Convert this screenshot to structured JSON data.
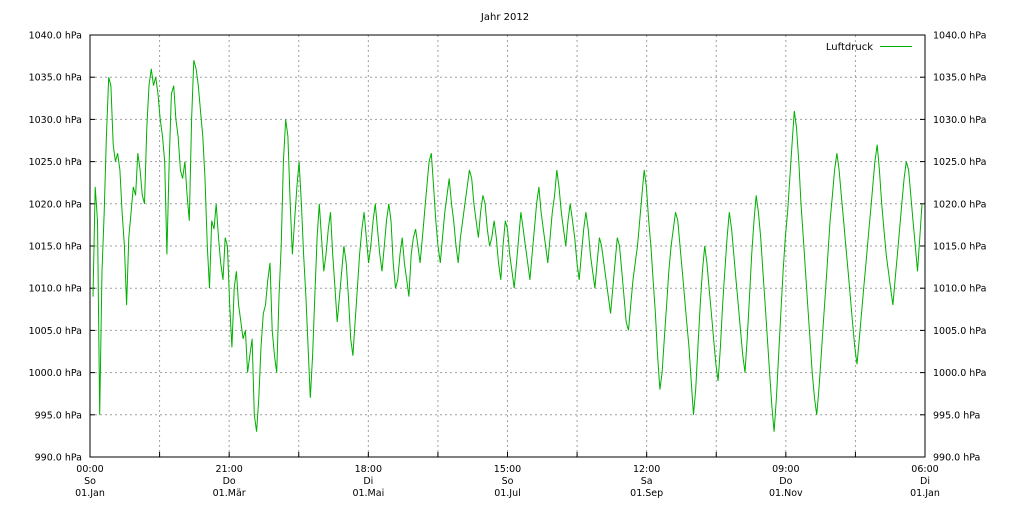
{
  "chart_data": {
    "type": "line",
    "title": "Jahr 2012",
    "xlabel": "",
    "ylabel": "",
    "ylim": [
      990,
      1040
    ],
    "y_ticks": [
      990,
      995,
      1000,
      1005,
      1010,
      1015,
      1020,
      1025,
      1030,
      1035,
      1040
    ],
    "y_tick_labels": [
      "990.0 hPa",
      "995.0 hPa",
      "1000.0 hPa",
      "1005.0 hPa",
      "1010.0 hPa",
      "1015.0 hPa",
      "1020.0 hPa",
      "1025.0 hPa",
      "1030.0 hPa",
      "1035.0 hPa",
      "1040.0 hPa"
    ],
    "x_ticks": [
      {
        "time": "00:00",
        "day": "So",
        "date": "01.Jan"
      },
      {
        "time": "21:00",
        "day": "Do",
        "date": "01.Mär"
      },
      {
        "time": "18:00",
        "day": "Di",
        "date": "01.Mai"
      },
      {
        "time": "15:00",
        "day": "So",
        "date": "01.Jul"
      },
      {
        "time": "12:00",
        "day": "Sa",
        "date": "01.Sep"
      },
      {
        "time": "09:00",
        "day": "Do",
        "date": "01.Nov"
      },
      {
        "time": "06:00",
        "day": "Di",
        "date": "01.Jan"
      }
    ],
    "grid": true,
    "legend_position": "top-right",
    "series": [
      {
        "name": "Luftdruck",
        "color": "#00b000",
        "x_start": "2012-01-01",
        "x_end": "2013-01-01",
        "values": [
          1009,
          1022,
          1018,
          995,
          1012,
          1019,
          1028,
          1035,
          1034,
          1027,
          1025,
          1026,
          1024,
          1019,
          1015,
          1008,
          1016,
          1019,
          1022,
          1021,
          1026,
          1024,
          1021,
          1020,
          1029,
          1034,
          1036,
          1034,
          1035,
          1033,
          1030,
          1028,
          1025,
          1014,
          1025,
          1033,
          1034,
          1030,
          1028,
          1024,
          1023,
          1025,
          1021,
          1018,
          1030,
          1037,
          1036,
          1034,
          1031,
          1028,
          1023,
          1015,
          1010,
          1018,
          1017,
          1020,
          1016,
          1013,
          1011,
          1016,
          1015,
          1008,
          1003,
          1010,
          1012,
          1008,
          1006,
          1004,
          1005,
          1000,
          1002,
          1004,
          995,
          993,
          997,
          1003,
          1007,
          1008,
          1011,
          1013,
          1005,
          1002,
          1000,
          1009,
          1015,
          1025,
          1030,
          1028,
          1020,
          1014,
          1018,
          1022,
          1025,
          1020,
          1014,
          1009,
          1003,
          997,
          1002,
          1009,
          1016,
          1020,
          1016,
          1012,
          1014,
          1017,
          1019,
          1014,
          1010,
          1006,
          1009,
          1012,
          1015,
          1013,
          1009,
          1004,
          1002,
          1006,
          1010,
          1014,
          1017,
          1019,
          1016,
          1013,
          1015,
          1018,
          1020,
          1017,
          1014,
          1012,
          1015,
          1018,
          1020,
          1018,
          1013,
          1010,
          1011,
          1014,
          1016,
          1013,
          1011,
          1009,
          1014,
          1016,
          1017,
          1015,
          1013,
          1016,
          1019,
          1022,
          1025,
          1026,
          1022,
          1018,
          1015,
          1013,
          1016,
          1019,
          1021,
          1023,
          1020,
          1018,
          1015,
          1013,
          1016,
          1018,
          1020,
          1022,
          1024,
          1023,
          1020,
          1018,
          1016,
          1019,
          1021,
          1020,
          1017,
          1015,
          1016,
          1018,
          1016,
          1013,
          1011,
          1015,
          1018,
          1017,
          1014,
          1012,
          1010,
          1013,
          1016,
          1019,
          1017,
          1015,
          1013,
          1011,
          1014,
          1017,
          1020,
          1022,
          1019,
          1017,
          1015,
          1013,
          1016,
          1019,
          1021,
          1024,
          1022,
          1019,
          1017,
          1015,
          1018,
          1020,
          1018,
          1016,
          1013,
          1011,
          1014,
          1017,
          1019,
          1017,
          1014,
          1012,
          1010,
          1013,
          1016,
          1015,
          1013,
          1011,
          1009,
          1007,
          1010,
          1013,
          1016,
          1015,
          1012,
          1009,
          1006,
          1005,
          1008,
          1011,
          1013,
          1015,
          1018,
          1021,
          1024,
          1022,
          1018,
          1015,
          1011,
          1007,
          1002,
          998,
          1000,
          1004,
          1008,
          1012,
          1015,
          1017,
          1019,
          1018,
          1015,
          1012,
          1009,
          1006,
          1003,
          999,
          995,
          998,
          1003,
          1008,
          1012,
          1015,
          1013,
          1010,
          1007,
          1004,
          1001,
          999,
          1003,
          1008,
          1012,
          1016,
          1019,
          1017,
          1014,
          1011,
          1008,
          1005,
          1002,
          1000,
          1004,
          1009,
          1014,
          1018,
          1021,
          1019,
          1016,
          1012,
          1008,
          1004,
          1000,
          996,
          993,
          997,
          1002,
          1007,
          1012,
          1016,
          1019,
          1023,
          1027,
          1031,
          1029,
          1025,
          1020,
          1016,
          1012,
          1008,
          1004,
          1000,
          997,
          995,
          998,
          1002,
          1006,
          1010,
          1014,
          1018,
          1021,
          1024,
          1026,
          1024,
          1021,
          1018,
          1015,
          1012,
          1009,
          1006,
          1003,
          1001,
          1004,
          1007,
          1010,
          1013,
          1016,
          1019,
          1022,
          1025,
          1027,
          1024,
          1020,
          1017,
          1014,
          1012,
          1010,
          1008,
          1011,
          1014,
          1017,
          1020,
          1023,
          1025,
          1024,
          1021,
          1018,
          1015,
          1012,
          1016,
          1020
        ]
      }
    ]
  }
}
